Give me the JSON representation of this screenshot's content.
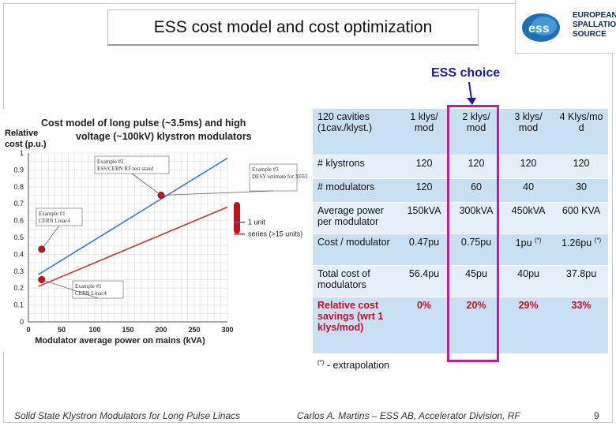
{
  "slide": {
    "title": "ESS cost model and cost optimization",
    "ess_choice": "ESS choice",
    "logo": {
      "line1": "EUROPEAN",
      "line2": "SPALLATION",
      "line3": "SOURCE",
      "mark_text": "ess"
    },
    "footnote_mark": "(*)",
    "footnote_text": " - extrapolation",
    "footer_left": "Solid State Klystron Modulators for Long Pulse Linacs",
    "footer_mid": "Carlos A. Martins – ESS AB, Accelerator Division, RF",
    "page_number": "9",
    "highlight_color": "#c21c9b"
  },
  "table": {
    "rows": [
      {
        "label": "120 cavities (1cav./klyst.)",
        "cells": [
          "1 klys/ mod",
          "2 klys/ mod",
          "3 klys/ mod",
          "4 Klys/mo d"
        ]
      },
      {
        "label": "# klystrons",
        "cells": [
          "120",
          "120",
          "120",
          "120"
        ]
      },
      {
        "label": "# modulators",
        "cells": [
          "120",
          "60",
          "40",
          "30"
        ]
      },
      {
        "label": "Average power per modulator",
        "cells": [
          "150kVA",
          "300kVA",
          "450kVA",
          "600 KVA"
        ]
      },
      {
        "label": "Cost / modulator",
        "cells": [
          "0.47pu",
          "0.75pu",
          "1pu",
          "1.26pu"
        ],
        "marks": [
          "",
          "",
          "(*)",
          "(*)"
        ]
      },
      {
        "label": "Total cost of modulators",
        "cells": [
          "56.4pu",
          "45pu",
          "40pu",
          "37.8pu"
        ]
      },
      {
        "label": "Relative cost savings (wrt 1 klys/mod)",
        "cells": [
          "0%",
          "20%",
          "29%",
          "33%"
        ]
      }
    ]
  },
  "chart_data": {
    "type": "line",
    "title": "Cost model of long pulse (~3.5ms) and high voltage (~100kV) klystron modulators",
    "ylabel": "Relative cost (p.u.)",
    "xlabel": "Modulator average power on mains (kVA)",
    "xlim": [
      0,
      300
    ],
    "ylim": [
      0,
      1
    ],
    "x_ticks": [
      "0",
      "50",
      "100",
      "150",
      "200",
      "250",
      "300"
    ],
    "y_ticks": [
      "0",
      "0.1",
      "0.2",
      "0.3",
      "0.4",
      "0.5",
      "0.6",
      "0.7",
      "0.8",
      "0.9",
      "1"
    ],
    "grid": true,
    "legend_position": "right",
    "series": [
      {
        "name": "1 unit",
        "color": "#3a78c9",
        "x": [
          15,
          300
        ],
        "y": [
          0.28,
          0.97
        ]
      },
      {
        "name": "series (>15 units)",
        "color": "#c0392b",
        "x": [
          15,
          300
        ],
        "y": [
          0.21,
          0.68
        ]
      }
    ],
    "points": [
      {
        "x": 20,
        "y": 0.43,
        "color": "#c0111f"
      },
      {
        "x": 200,
        "y": 0.75,
        "color": "#c0111f"
      },
      {
        "x": 20,
        "y": 0.25,
        "color": "#c0111f"
      }
    ],
    "annotations": [
      {
        "text": "Example #2 ESS/CERN RF test stand",
        "target_index": 1
      },
      {
        "text": "Example #3 DESY estimate for XFEL",
        "target_index": 1
      },
      {
        "text": "Example #1 CERN Linac4",
        "target_index": 0
      },
      {
        "text": "Example #1 CERN Linac4",
        "target_index": 2
      }
    ]
  }
}
